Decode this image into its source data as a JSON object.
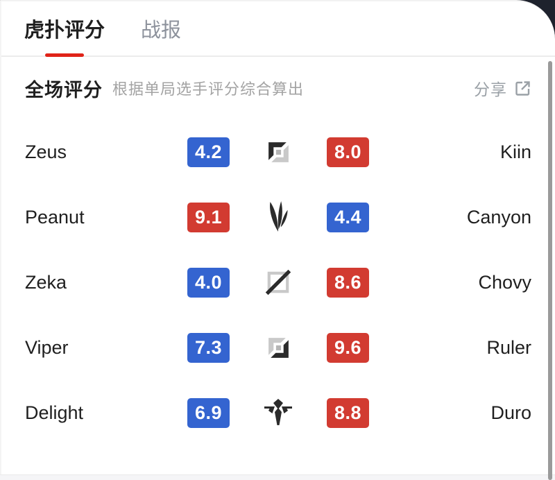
{
  "tabs": [
    {
      "label": "虎扑评分",
      "active": true
    },
    {
      "label": "战报",
      "active": false
    }
  ],
  "section": {
    "title": "全场评分",
    "subtitle": "根据单局选手评分综合算出",
    "share_label": "分享",
    "share_icon": "share-external-icon"
  },
  "colors": {
    "blue": "#3464d0",
    "red": "#d23b31",
    "tab_indicator_red": "#e02318"
  },
  "rows": [
    {
      "left_player": "Zeus",
      "left_score": "4.2",
      "left_color": "blue",
      "role_icon": "top-lane-icon",
      "right_score": "8.0",
      "right_color": "red",
      "right_player": "Kiin"
    },
    {
      "left_player": "Peanut",
      "left_score": "9.1",
      "left_color": "red",
      "role_icon": "jungle-icon",
      "right_score": "4.4",
      "right_color": "blue",
      "right_player": "Canyon"
    },
    {
      "left_player": "Zeka",
      "left_score": "4.0",
      "left_color": "blue",
      "role_icon": "mid-lane-icon",
      "right_score": "8.6",
      "right_color": "red",
      "right_player": "Chovy"
    },
    {
      "left_player": "Viper",
      "left_score": "7.3",
      "left_color": "blue",
      "role_icon": "bot-lane-icon",
      "right_score": "9.6",
      "right_color": "red",
      "right_player": "Ruler"
    },
    {
      "left_player": "Delight",
      "left_score": "6.9",
      "left_color": "blue",
      "role_icon": "support-icon",
      "right_score": "8.8",
      "right_color": "red",
      "right_player": "Duro"
    }
  ]
}
